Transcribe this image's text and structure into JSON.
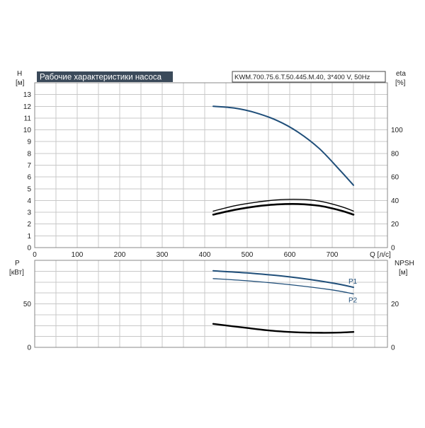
{
  "chart_data": [
    {
      "type": "line",
      "title": "Рабочие характеристики насоса",
      "subtitle": "KWM.700.75.6.T.50.445.M.40, 3*400 V, 50Hz",
      "xlabel": "Q [л/с]",
      "ylabel_left": [
        "H",
        "[м]"
      ],
      "ylabel_right": [
        "eta",
        "[%]"
      ],
      "xlim": [
        0,
        830
      ],
      "ylim_left": [
        0,
        14
      ],
      "ylim_right": [
        0,
        140
      ],
      "x_ticks": [
        "0",
        "100",
        "200",
        "300",
        "400",
        "500",
        "600",
        "700"
      ],
      "y_ticks_left": [
        "0",
        "1",
        "2",
        "3",
        "4",
        "5",
        "6",
        "7",
        "8",
        "9",
        "10",
        "11",
        "12",
        "13"
      ],
      "y_ticks_right": [
        "0",
        "20",
        "40",
        "60",
        "80",
        "100"
      ],
      "grid": true,
      "series": [
        {
          "axis": "left",
          "color": "#1f4e79",
          "x": [
            420,
            470,
            520,
            570,
            620,
            670,
            720,
            750
          ],
          "y": [
            12.0,
            11.85,
            11.45,
            10.8,
            9.8,
            8.4,
            6.5,
            5.3
          ]
        },
        {
          "axis": "right",
          "color": "#000000",
          "x": [
            420,
            470,
            520,
            570,
            620,
            670,
            720,
            750
          ],
          "y": [
            31,
            35.5,
            38.5,
            40.5,
            41,
            39.5,
            35,
            31
          ]
        },
        {
          "axis": "right",
          "color": "#000000",
          "x": [
            420,
            470,
            520,
            570,
            620,
            670,
            720,
            750
          ],
          "y": [
            28,
            32,
            35,
            36.7,
            37,
            35.5,
            31.5,
            28
          ]
        }
      ]
    },
    {
      "type": "line",
      "xlim": [
        0,
        830
      ],
      "ylabel_left": [
        "P",
        "[кВт]"
      ],
      "ylabel_right": [
        "NPSH",
        "[м]"
      ],
      "ylim_left": [
        0,
        100
      ],
      "ylim_right": [
        0,
        40
      ],
      "y_ticks_left": [
        "0",
        "50"
      ],
      "y_ticks_right": [
        "0",
        "20"
      ],
      "grid": true,
      "series": [
        {
          "name": "P1",
          "axis": "left",
          "color": "#1f4e79",
          "x": [
            420,
            500,
            600,
            700,
            750
          ],
          "y": [
            88,
            85.5,
            81,
            74,
            69
          ]
        },
        {
          "name": "P2",
          "axis": "left",
          "color": "#1f4e79",
          "x": [
            420,
            500,
            600,
            700,
            750
          ],
          "y": [
            79,
            76.5,
            72,
            66,
            61.5
          ]
        },
        {
          "axis": "right",
          "color": "#000000",
          "x": [
            420,
            500,
            560,
            620,
            680,
            720,
            750
          ],
          "y": [
            10.8,
            8.9,
            7.6,
            6.9,
            6.7,
            6.8,
            7.1
          ]
        }
      ]
    }
  ]
}
